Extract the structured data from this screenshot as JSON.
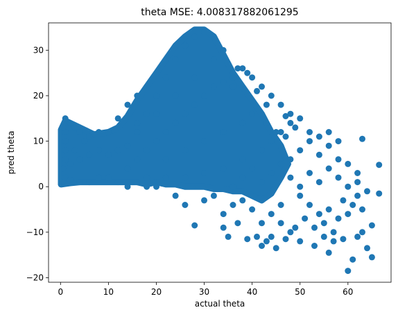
{
  "chart_data": {
    "type": "scatter",
    "title": "theta MSE: 4.008317882061295",
    "xlabel": "actual theta",
    "ylabel": "pred theta",
    "xlim": [
      -2.5,
      69
    ],
    "ylim": [
      -21,
      36
    ],
    "xticks": [
      0,
      10,
      20,
      30,
      40,
      50,
      60
    ],
    "yticks": [
      -20,
      -10,
      0,
      10,
      20,
      30
    ],
    "xtick_labels": [
      "0",
      "10",
      "20",
      "30",
      "40",
      "50",
      "60"
    ],
    "ytick_labels": [
      "−20",
      "−10",
      "0",
      "10",
      "20",
      "30"
    ],
    "grid": false,
    "legend": "none",
    "color": "#1f77b4",
    "points": [
      [
        0.5,
        1.2
      ],
      [
        1,
        2
      ],
      [
        2,
        1.5
      ],
      [
        4,
        1
      ],
      [
        6,
        1
      ],
      [
        8,
        2
      ],
      [
        10,
        2
      ],
      [
        12,
        1
      ],
      [
        14,
        0
      ],
      [
        16,
        1
      ],
      [
        18,
        0
      ],
      [
        20,
        0
      ],
      [
        0.5,
        4
      ],
      [
        1,
        6
      ],
      [
        1,
        8
      ],
      [
        1,
        10
      ],
      [
        1,
        12
      ],
      [
        1,
        15
      ],
      [
        0.5,
        13
      ],
      [
        2,
        14
      ],
      [
        3,
        13
      ],
      [
        4,
        12
      ],
      [
        5,
        10
      ],
      [
        6,
        11
      ],
      [
        8,
        12
      ],
      [
        10,
        12
      ],
      [
        2,
        5
      ],
      [
        3,
        8
      ],
      [
        4,
        6
      ],
      [
        6,
        7
      ],
      [
        8,
        8
      ],
      [
        10,
        7
      ],
      [
        12,
        8
      ],
      [
        14,
        9
      ],
      [
        16,
        12
      ],
      [
        18,
        16
      ],
      [
        20,
        20
      ],
      [
        22,
        24
      ],
      [
        24,
        28
      ],
      [
        26,
        31
      ],
      [
        28,
        33
      ],
      [
        30,
        34
      ],
      [
        14,
        4
      ],
      [
        16,
        6
      ],
      [
        18,
        8
      ],
      [
        20,
        10
      ],
      [
        22,
        12
      ],
      [
        24,
        14
      ],
      [
        26,
        16
      ],
      [
        28,
        18
      ],
      [
        30,
        20
      ],
      [
        32,
        22
      ],
      [
        34,
        23
      ],
      [
        36,
        22
      ],
      [
        16,
        14
      ],
      [
        20,
        16
      ],
      [
        24,
        20
      ],
      [
        28,
        24
      ],
      [
        32,
        28
      ],
      [
        34,
        30
      ],
      [
        22,
        6
      ],
      [
        26,
        8
      ],
      [
        30,
        10
      ],
      [
        34,
        12
      ],
      [
        38,
        14
      ],
      [
        40,
        16
      ],
      [
        18,
        2
      ],
      [
        22,
        2
      ],
      [
        26,
        2
      ],
      [
        30,
        3
      ],
      [
        34,
        4
      ],
      [
        38,
        6
      ],
      [
        42,
        8
      ],
      [
        44,
        10
      ],
      [
        46,
        12
      ],
      [
        48,
        14
      ],
      [
        50,
        15
      ],
      [
        12,
        15
      ],
      [
        14,
        18
      ],
      [
        16,
        20
      ],
      [
        36,
        24
      ],
      [
        38,
        26
      ],
      [
        40,
        24
      ],
      [
        42,
        22
      ],
      [
        44,
        20
      ],
      [
        46,
        18
      ],
      [
        48,
        16
      ],
      [
        24,
        -2
      ],
      [
        26,
        -4
      ],
      [
        28,
        -8.5
      ],
      [
        30,
        -3
      ],
      [
        32,
        -2
      ],
      [
        34,
        -6
      ],
      [
        36,
        -4
      ],
      [
        38,
        -3
      ],
      [
        40,
        -5
      ],
      [
        42,
        -8
      ],
      [
        44,
        -6
      ],
      [
        46,
        -4
      ],
      [
        34,
        -9
      ],
      [
        35,
        -11
      ],
      [
        37,
        -8
      ],
      [
        39,
        -11.5
      ],
      [
        41,
        -11
      ],
      [
        42,
        -13
      ],
      [
        43,
        -12
      ],
      [
        45,
        -13.5
      ],
      [
        46,
        -8
      ],
      [
        48,
        -10
      ],
      [
        50,
        -12
      ],
      [
        36,
        0
      ],
      [
        38,
        2
      ],
      [
        40,
        4
      ],
      [
        42,
        1
      ],
      [
        44,
        3
      ],
      [
        46,
        5
      ],
      [
        48,
        6
      ],
      [
        50,
        8
      ],
      [
        52,
        10
      ],
      [
        54,
        11
      ],
      [
        56,
        12
      ],
      [
        58,
        10
      ],
      [
        50,
        -2
      ],
      [
        52,
        -4
      ],
      [
        54,
        -6
      ],
      [
        55,
        -8
      ],
      [
        56,
        -5
      ],
      [
        57,
        -10
      ],
      [
        58,
        -7
      ],
      [
        59,
        -3
      ],
      [
        60,
        -6
      ],
      [
        61,
        -4
      ],
      [
        62,
        -2
      ],
      [
        63,
        -5
      ],
      [
        48,
        2
      ],
      [
        50,
        0
      ],
      [
        52,
        3
      ],
      [
        54,
        1
      ],
      [
        56,
        4
      ],
      [
        58,
        2
      ],
      [
        60,
        0
      ],
      [
        62,
        1
      ],
      [
        64,
        -1
      ],
      [
        66.5,
        -1.5
      ],
      [
        66.5,
        4.8
      ],
      [
        63,
        10.5
      ],
      [
        53,
        -13
      ],
      [
        56,
        -14.5
      ],
      [
        59,
        -11.5
      ],
      [
        60,
        -18.5
      ],
      [
        61,
        -16
      ],
      [
        62,
        -11
      ],
      [
        64,
        -13.5
      ],
      [
        65,
        -15.5
      ],
      [
        65,
        -8.5
      ],
      [
        63,
        -10
      ],
      [
        44,
        -11
      ],
      [
        47,
        -11.5
      ],
      [
        49,
        -9
      ],
      [
        51,
        -7
      ],
      [
        53,
        -9
      ],
      [
        55,
        -11
      ],
      [
        57,
        -12
      ],
      [
        43,
        14
      ],
      [
        45,
        12
      ],
      [
        47,
        11
      ],
      [
        49,
        13
      ],
      [
        52,
        12
      ],
      [
        54,
        7
      ],
      [
        56,
        9
      ],
      [
        58,
        6
      ],
      [
        60,
        5
      ],
      [
        62,
        3
      ],
      [
        35,
        27
      ],
      [
        37,
        26
      ],
      [
        39,
        25
      ],
      [
        41,
        21
      ],
      [
        43,
        18
      ],
      [
        47,
        15.5
      ]
    ]
  }
}
